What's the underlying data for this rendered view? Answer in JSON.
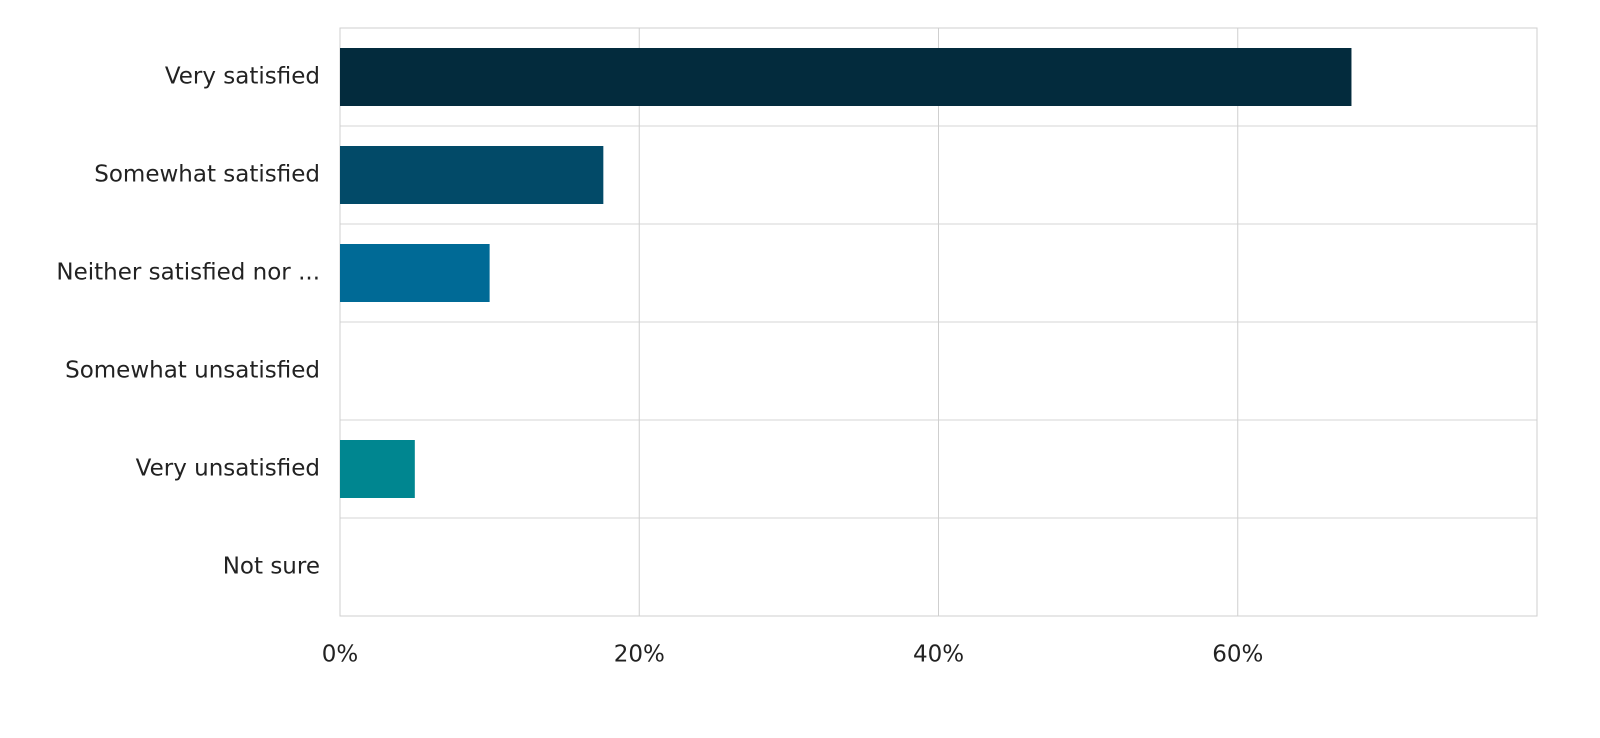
{
  "chart_data": {
    "type": "bar",
    "orientation": "horizontal",
    "categories": [
      "Very satisfied",
      "Somewhat satisfied",
      "Neither satisfied nor ...",
      "Somewhat unsatisfied",
      "Very unsatisfied",
      "Not sure"
    ],
    "values": [
      67.6,
      17.6,
      10.0,
      0,
      5.0,
      0
    ],
    "colors": [
      "#032b3d",
      "#024a68",
      "#006a96",
      null,
      "#008690",
      null
    ],
    "xlim": [
      0,
      80
    ],
    "xticks": [
      {
        "value": 0,
        "label": "0%"
      },
      {
        "value": 20,
        "label": "20%"
      },
      {
        "value": 40,
        "label": "40%"
      },
      {
        "value": 60,
        "label": "60%"
      }
    ],
    "grid": true
  }
}
